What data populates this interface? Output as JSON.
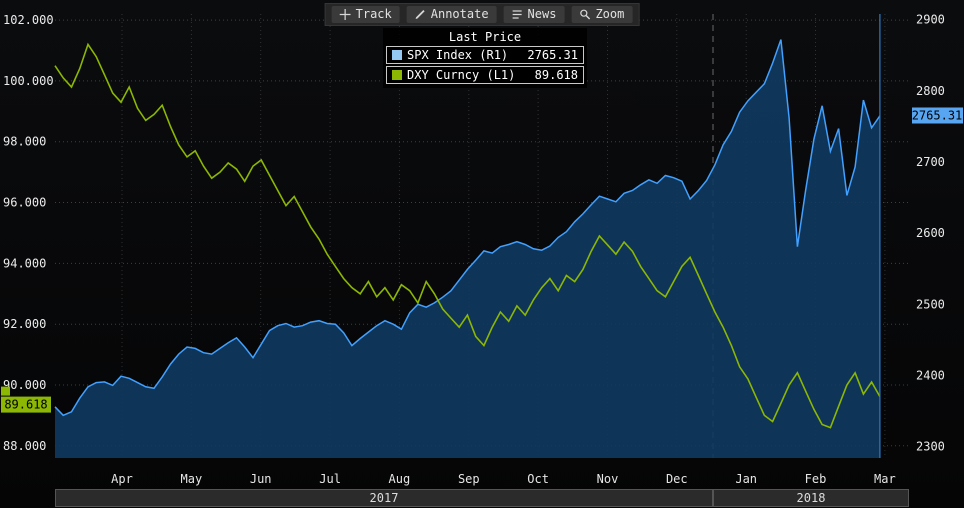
{
  "toolbar": {
    "buttons": [
      {
        "label": "Track"
      },
      {
        "label": "Annotate"
      },
      {
        "label": "News"
      },
      {
        "label": "Zoom"
      }
    ]
  },
  "legend": {
    "title": "Last Price",
    "series": [
      {
        "label": "SPX Index (R1)",
        "value": "2765.31",
        "swatch": "#94C8F2"
      },
      {
        "label": "DXY Curncy (L1)",
        "value": "89.618",
        "swatch": "#8CB702"
      }
    ]
  },
  "chart_data": {
    "type": "line",
    "description": "SPX Index (right axis) vs DXY Curncy (left axis), Apr 2017 - Mar 2018",
    "month_labels": [
      "Apr",
      "May",
      "Jun",
      "Jul",
      "Aug",
      "Sep",
      "Oct",
      "Nov",
      "Dec",
      "Jan",
      "Feb",
      "Mar"
    ],
    "year_labels": [
      "2017",
      "2018"
    ],
    "left_axis": {
      "ticks": [
        "102.000",
        "100.000",
        "98.000",
        "96.000",
        "94.000",
        "92.000",
        "90.000",
        "88.000"
      ],
      "tick_values": [
        102,
        100,
        98,
        96,
        94,
        92,
        90,
        88
      ],
      "min": 87.6,
      "max": 102.2,
      "last_value": "89.618",
      "last_value_num": 89.618,
      "badge_color": "#8CB702"
    },
    "right_axis": {
      "ticks": [
        "2900",
        "2800",
        "2700",
        "2600",
        "2500",
        "2400",
        "2300"
      ],
      "tick_values": [
        2900,
        2800,
        2700,
        2600,
        2500,
        2400,
        2300
      ],
      "min": 2284,
      "max": 2908,
      "last_value": "2765.31",
      "last_value_num": 2765.31,
      "badge_color": "#58A6F2"
    },
    "series": [
      {
        "name": "SPX Index (R1)",
        "axis": "right",
        "color": "#42A0FF",
        "fill": "#103A60",
        "values": [
          2356,
          2344,
          2349,
          2368,
          2384,
          2390,
          2391,
          2386,
          2399,
          2396,
          2390,
          2384,
          2382,
          2398,
          2416,
          2430,
          2440,
          2438,
          2432,
          2430,
          2438,
          2446,
          2453,
          2440,
          2425,
          2444,
          2463,
          2470,
          2473,
          2468,
          2470,
          2475,
          2477,
          2473,
          2472,
          2460,
          2442,
          2452,
          2461,
          2470,
          2477,
          2472,
          2465,
          2488,
          2500,
          2496,
          2502,
          2510,
          2519,
          2534,
          2549,
          2562,
          2575,
          2572,
          2581,
          2584,
          2588,
          2584,
          2578,
          2576,
          2582,
          2594,
          2602,
          2616,
          2627,
          2640,
          2652,
          2648,
          2644,
          2656,
          2660,
          2668,
          2675,
          2670,
          2681,
          2678,
          2673,
          2648,
          2660,
          2674,
          2696,
          2724,
          2743,
          2770,
          2786,
          2798,
          2810,
          2839,
          2872,
          2762,
          2581,
          2660,
          2732,
          2779,
          2715,
          2747,
          2653,
          2693,
          2787,
          2748,
          2765
        ]
      },
      {
        "name": "DXY Curncy (L1)",
        "axis": "left",
        "color": "#8CB702",
        "values": [
          100.5,
          100.1,
          99.8,
          100.4,
          101.2,
          100.8,
          100.2,
          99.6,
          99.3,
          99.8,
          99.1,
          98.7,
          98.9,
          99.2,
          98.5,
          97.9,
          97.5,
          97.7,
          97.2,
          96.8,
          97.0,
          97.3,
          97.1,
          96.7,
          97.2,
          97.4,
          96.9,
          96.4,
          95.9,
          96.2,
          95.7,
          95.2,
          94.8,
          94.3,
          93.9,
          93.5,
          93.2,
          93.0,
          93.4,
          92.9,
          93.2,
          92.8,
          93.3,
          93.1,
          92.7,
          93.4,
          93.0,
          92.5,
          92.2,
          91.9,
          92.3,
          91.6,
          91.3,
          91.9,
          92.4,
          92.1,
          92.6,
          92.3,
          92.8,
          93.2,
          93.5,
          93.1,
          93.6,
          93.4,
          93.8,
          94.4,
          94.9,
          94.6,
          94.3,
          94.7,
          94.4,
          93.9,
          93.5,
          93.1,
          92.9,
          93.4,
          93.9,
          94.2,
          93.6,
          93.0,
          92.4,
          91.9,
          91.3,
          90.6,
          90.2,
          89.6,
          89.0,
          88.8,
          89.4,
          90.0,
          90.4,
          89.8,
          89.2,
          88.7,
          88.6,
          89.3,
          90.0,
          90.4,
          89.7,
          90.1,
          89.618
        ]
      }
    ]
  }
}
